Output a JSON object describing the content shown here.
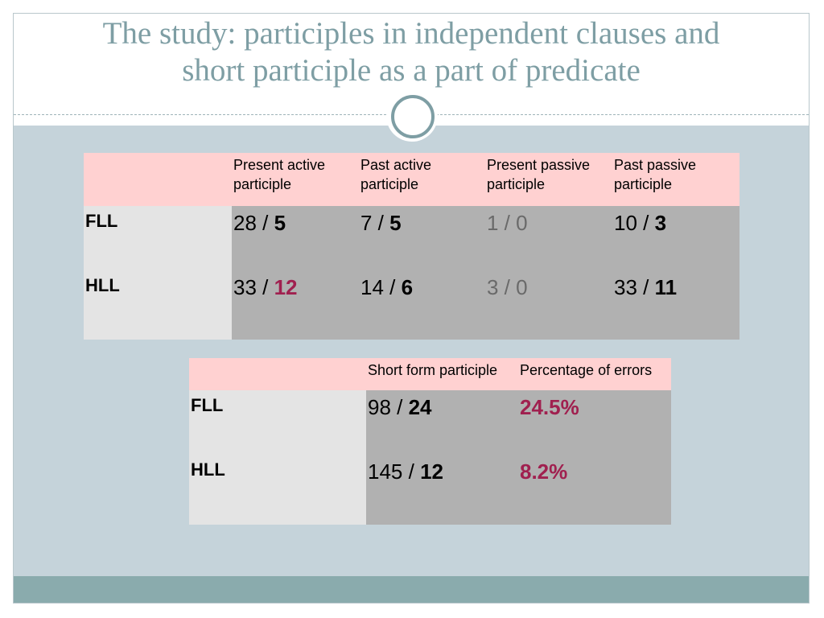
{
  "slide": {
    "title_line1": "The study: participles in independent clauses and",
    "title_line2": "short participle as a part of predicate"
  },
  "table1": {
    "headers": [
      "Present active participle",
      "Past active participle",
      "Present passive participle",
      "Past passive participle"
    ],
    "rows": [
      {
        "label": "FLL",
        "cells": [
          {
            "total": "28 / ",
            "errors": "5"
          },
          {
            "total": "7 / ",
            "errors": "5"
          },
          {
            "total": "1 / ",
            "errors": "0"
          },
          {
            "total": "10 / ",
            "errors": "3"
          }
        ]
      },
      {
        "label": "HLL",
        "cells": [
          {
            "total": "33 / ",
            "errors": "12"
          },
          {
            "total": "14 / ",
            "errors": "6"
          },
          {
            "total": "3 / ",
            "errors": "0"
          },
          {
            "total": "33 / ",
            "errors": "11"
          }
        ]
      }
    ]
  },
  "table2": {
    "headers": [
      "Short form participle",
      "Percentage of errors"
    ],
    "rows": [
      {
        "label": "FLL",
        "total": "98 / ",
        "errors": "24",
        "percent": "24.5%"
      },
      {
        "label": "HLL",
        "total": "145 / ",
        "errors": "12",
        "percent": "8.2%"
      }
    ]
  },
  "colors": {
    "title": "#7e9ea4",
    "header_bg": "#ffd1d1",
    "label_bg": "#e4e4e4",
    "value_bg": "#b1b1b1",
    "content_bg": "#c5d3da",
    "footer_bar": "#8aabad",
    "highlight_red": "#a0204f"
  }
}
